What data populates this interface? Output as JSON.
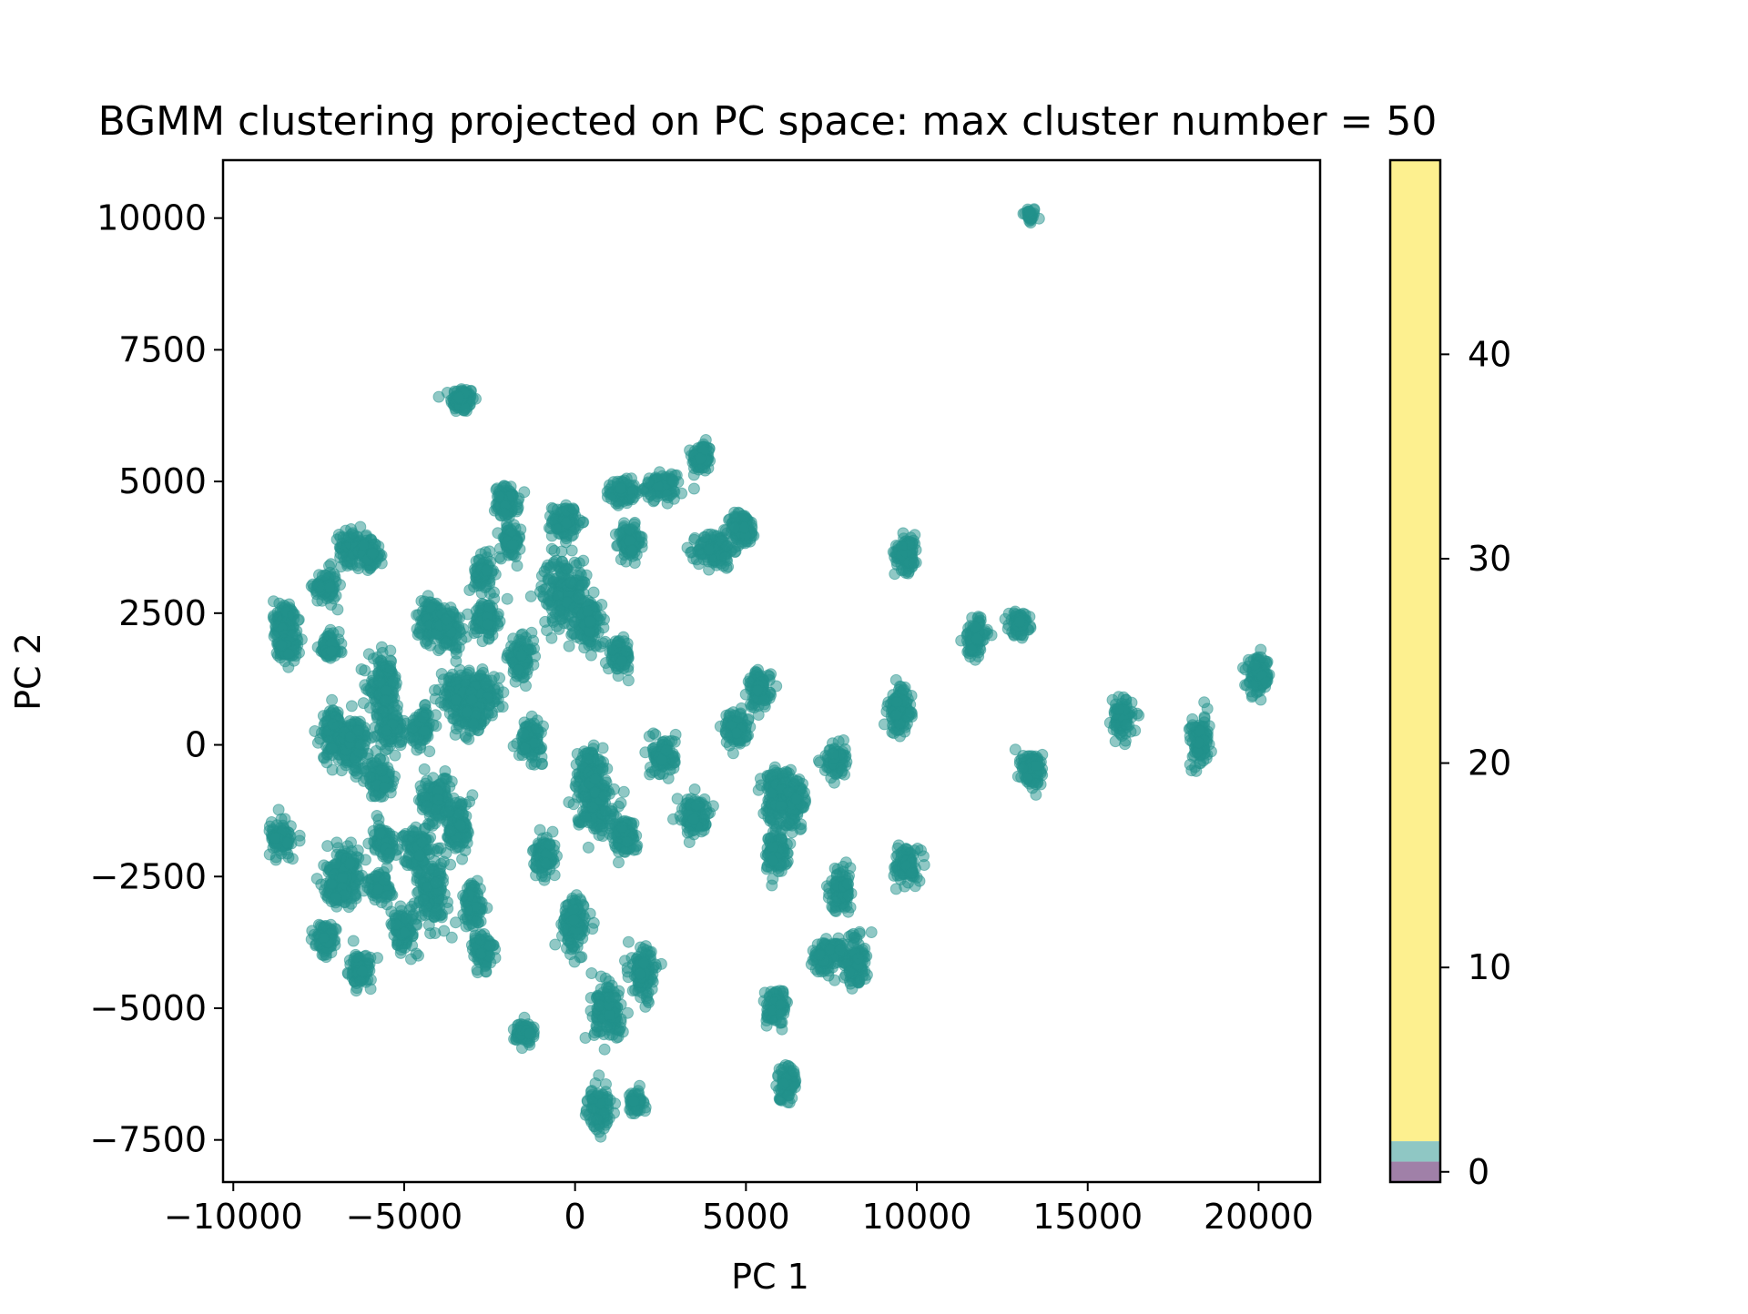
{
  "chart_data": {
    "type": "scatter",
    "title": "BGMM clustering projected on PC space: max cluster number = 50",
    "xlabel": "PC 1",
    "ylabel": "PC 2",
    "xlim": [
      -10300,
      21800
    ],
    "ylim": [
      -8300,
      11100
    ],
    "xticks": [
      -10000,
      -5000,
      0,
      5000,
      10000,
      15000,
      20000
    ],
    "xtick_labels": [
      "−10000",
      "−5000",
      "0",
      "5000",
      "10000",
      "15000",
      "20000"
    ],
    "yticks": [
      -7500,
      -5000,
      -2500,
      0,
      2500,
      5000,
      7500,
      10000
    ],
    "ytick_labels": [
      "−7500",
      "−5000",
      "−2500",
      "0",
      "2500",
      "5000",
      "7500",
      "10000"
    ],
    "grid": false,
    "point_color": "#21918c",
    "point_alpha": 0.5,
    "clusters": [
      {
        "x": 13300,
        "y": 10050,
        "sx": 100,
        "sy": 80,
        "n": 30
      },
      {
        "x": -3300,
        "y": 6550,
        "sx": 170,
        "sy": 120,
        "n": 110
      },
      {
        "x": 3700,
        "y": 5450,
        "sx": 140,
        "sy": 140,
        "n": 90
      },
      {
        "x": 1400,
        "y": 4800,
        "sx": 180,
        "sy": 110,
        "n": 110
      },
      {
        "x": 2500,
        "y": 4900,
        "sx": 220,
        "sy": 110,
        "n": 110
      },
      {
        "x": -2000,
        "y": 4600,
        "sx": 170,
        "sy": 150,
        "n": 110
      },
      {
        "x": -300,
        "y": 4250,
        "sx": 180,
        "sy": 150,
        "n": 110
      },
      {
        "x": -1900,
        "y": 3850,
        "sx": 150,
        "sy": 150,
        "n": 90
      },
      {
        "x": 1600,
        "y": 3850,
        "sx": 160,
        "sy": 150,
        "n": 110
      },
      {
        "x": 4100,
        "y": 3700,
        "sx": 260,
        "sy": 170,
        "n": 130
      },
      {
        "x": 4900,
        "y": 4100,
        "sx": 200,
        "sy": 150,
        "n": 110
      },
      {
        "x": 9700,
        "y": 3650,
        "sx": 170,
        "sy": 170,
        "n": 110
      },
      {
        "x": -6500,
        "y": 3750,
        "sx": 200,
        "sy": 150,
        "n": 110
      },
      {
        "x": -6000,
        "y": 3600,
        "sx": 150,
        "sy": 120,
        "n": 80
      },
      {
        "x": -7300,
        "y": 3000,
        "sx": 170,
        "sy": 150,
        "n": 90
      },
      {
        "x": -2700,
        "y": 3250,
        "sx": 130,
        "sy": 170,
        "n": 80
      },
      {
        "x": -300,
        "y": 2900,
        "sx": 330,
        "sy": 330,
        "n": 210
      },
      {
        "x": -8500,
        "y": 2300,
        "sx": 160,
        "sy": 230,
        "n": 130
      },
      {
        "x": -8400,
        "y": 1850,
        "sx": 140,
        "sy": 130,
        "n": 80
      },
      {
        "x": -4200,
        "y": 2400,
        "sx": 230,
        "sy": 180,
        "n": 130
      },
      {
        "x": -3700,
        "y": 2200,
        "sx": 200,
        "sy": 180,
        "n": 110
      },
      {
        "x": -2600,
        "y": 2400,
        "sx": 170,
        "sy": 170,
        "n": 110
      },
      {
        "x": 400,
        "y": 2250,
        "sx": 190,
        "sy": 220,
        "n": 120
      },
      {
        "x": 11700,
        "y": 2050,
        "sx": 160,
        "sy": 180,
        "n": 100
      },
      {
        "x": 13000,
        "y": 2300,
        "sx": 150,
        "sy": 110,
        "n": 80
      },
      {
        "x": -7200,
        "y": 1850,
        "sx": 150,
        "sy": 130,
        "n": 90
      },
      {
        "x": -1600,
        "y": 1650,
        "sx": 180,
        "sy": 170,
        "n": 110
      },
      {
        "x": 1300,
        "y": 1700,
        "sx": 160,
        "sy": 140,
        "n": 90
      },
      {
        "x": 20000,
        "y": 1300,
        "sx": 170,
        "sy": 170,
        "n": 110
      },
      {
        "x": -5600,
        "y": 1100,
        "sx": 220,
        "sy": 270,
        "n": 150
      },
      {
        "x": -5400,
        "y": 300,
        "sx": 170,
        "sy": 180,
        "n": 100
      },
      {
        "x": -3400,
        "y": 950,
        "sx": 280,
        "sy": 240,
        "n": 170
      },
      {
        "x": -2700,
        "y": 950,
        "sx": 230,
        "sy": 200,
        "n": 130
      },
      {
        "x": -3000,
        "y": 500,
        "sx": 130,
        "sy": 130,
        "n": 70
      },
      {
        "x": 5400,
        "y": 1050,
        "sx": 160,
        "sy": 180,
        "n": 100
      },
      {
        "x": 9500,
        "y": 650,
        "sx": 170,
        "sy": 210,
        "n": 120
      },
      {
        "x": 16000,
        "y": 500,
        "sx": 150,
        "sy": 170,
        "n": 100
      },
      {
        "x": -7000,
        "y": 200,
        "sx": 200,
        "sy": 240,
        "n": 140
      },
      {
        "x": -6500,
        "y": 0,
        "sx": 230,
        "sy": 240,
        "n": 150
      },
      {
        "x": -4500,
        "y": 350,
        "sx": 150,
        "sy": 160,
        "n": 90
      },
      {
        "x": -1300,
        "y": 100,
        "sx": 170,
        "sy": 170,
        "n": 110
      },
      {
        "x": 4700,
        "y": 300,
        "sx": 170,
        "sy": 170,
        "n": 100
      },
      {
        "x": 18300,
        "y": 50,
        "sx": 150,
        "sy": 230,
        "n": 110
      },
      {
        "x": 7600,
        "y": -300,
        "sx": 150,
        "sy": 150,
        "n": 80
      },
      {
        "x": 2600,
        "y": -200,
        "sx": 170,
        "sy": 180,
        "n": 110
      },
      {
        "x": 13400,
        "y": -500,
        "sx": 160,
        "sy": 190,
        "n": 110
      },
      {
        "x": -5700,
        "y": -650,
        "sx": 170,
        "sy": 170,
        "n": 110
      },
      {
        "x": 400,
        "y": -500,
        "sx": 150,
        "sy": 240,
        "n": 110
      },
      {
        "x": 600,
        "y": -1100,
        "sx": 280,
        "sy": 280,
        "n": 170
      },
      {
        "x": 1400,
        "y": -1700,
        "sx": 180,
        "sy": 170,
        "n": 100
      },
      {
        "x": 5900,
        "y": -1000,
        "sx": 190,
        "sy": 300,
        "n": 160
      },
      {
        "x": 6400,
        "y": -1100,
        "sx": 180,
        "sy": 220,
        "n": 120
      },
      {
        "x": -4100,
        "y": -1050,
        "sx": 210,
        "sy": 230,
        "n": 130
      },
      {
        "x": -3400,
        "y": -1550,
        "sx": 170,
        "sy": 280,
        "n": 120
      },
      {
        "x": 3500,
        "y": -1350,
        "sx": 210,
        "sy": 180,
        "n": 120
      },
      {
        "x": -8600,
        "y": -1800,
        "sx": 170,
        "sy": 150,
        "n": 100
      },
      {
        "x": -5600,
        "y": -1850,
        "sx": 170,
        "sy": 150,
        "n": 100
      },
      {
        "x": -4600,
        "y": -1950,
        "sx": 180,
        "sy": 200,
        "n": 110
      },
      {
        "x": -4200,
        "y": -2800,
        "sx": 220,
        "sy": 300,
        "n": 150
      },
      {
        "x": -900,
        "y": -2150,
        "sx": 150,
        "sy": 180,
        "n": 100
      },
      {
        "x": 5900,
        "y": -2050,
        "sx": 160,
        "sy": 200,
        "n": 110
      },
      {
        "x": 9700,
        "y": -2300,
        "sx": 160,
        "sy": 170,
        "n": 100
      },
      {
        "x": -6700,
        "y": -2300,
        "sx": 200,
        "sy": 200,
        "n": 120
      },
      {
        "x": -6900,
        "y": -2700,
        "sx": 230,
        "sy": 170,
        "n": 120
      },
      {
        "x": -5700,
        "y": -2700,
        "sx": 170,
        "sy": 150,
        "n": 90
      },
      {
        "x": 7800,
        "y": -2750,
        "sx": 160,
        "sy": 190,
        "n": 110
      },
      {
        "x": -5000,
        "y": -3500,
        "sx": 170,
        "sy": 200,
        "n": 110
      },
      {
        "x": -3000,
        "y": -3050,
        "sx": 160,
        "sy": 200,
        "n": 100
      },
      {
        "x": 0,
        "y": -3400,
        "sx": 180,
        "sy": 250,
        "n": 130
      },
      {
        "x": -7300,
        "y": -3700,
        "sx": 150,
        "sy": 150,
        "n": 90
      },
      {
        "x": -2700,
        "y": -3900,
        "sx": 160,
        "sy": 170,
        "n": 100
      },
      {
        "x": 7400,
        "y": -4000,
        "sx": 250,
        "sy": 160,
        "n": 120
      },
      {
        "x": 8200,
        "y": -4100,
        "sx": 170,
        "sy": 220,
        "n": 120
      },
      {
        "x": -6300,
        "y": -4300,
        "sx": 160,
        "sy": 150,
        "n": 100
      },
      {
        "x": 2000,
        "y": -4350,
        "sx": 170,
        "sy": 250,
        "n": 120
      },
      {
        "x": 1000,
        "y": -5100,
        "sx": 240,
        "sy": 240,
        "n": 150
      },
      {
        "x": 5900,
        "y": -5000,
        "sx": 150,
        "sy": 170,
        "n": 90
      },
      {
        "x": -1500,
        "y": -5450,
        "sx": 150,
        "sy": 100,
        "n": 70
      },
      {
        "x": 6200,
        "y": -6400,
        "sx": 150,
        "sy": 170,
        "n": 90
      },
      {
        "x": 700,
        "y": -6900,
        "sx": 170,
        "sy": 200,
        "n": 100
      },
      {
        "x": 1800,
        "y": -6800,
        "sx": 110,
        "sy": 100,
        "n": 60
      }
    ],
    "colorbar": {
      "ticks": [
        0,
        10,
        20,
        30,
        40
      ],
      "tick_labels": [
        "0",
        "10",
        "20",
        "30",
        "40"
      ],
      "range": [
        -0.5,
        49.5
      ],
      "bands": [
        {
          "from": -0.5,
          "to": 0.5,
          "color": "#a080a8"
        },
        {
          "from": 0.5,
          "to": 1.5,
          "color": "#8fc7c4"
        },
        {
          "from": 1.5,
          "to": 49.5,
          "color": "#fdf08f"
        }
      ]
    }
  }
}
